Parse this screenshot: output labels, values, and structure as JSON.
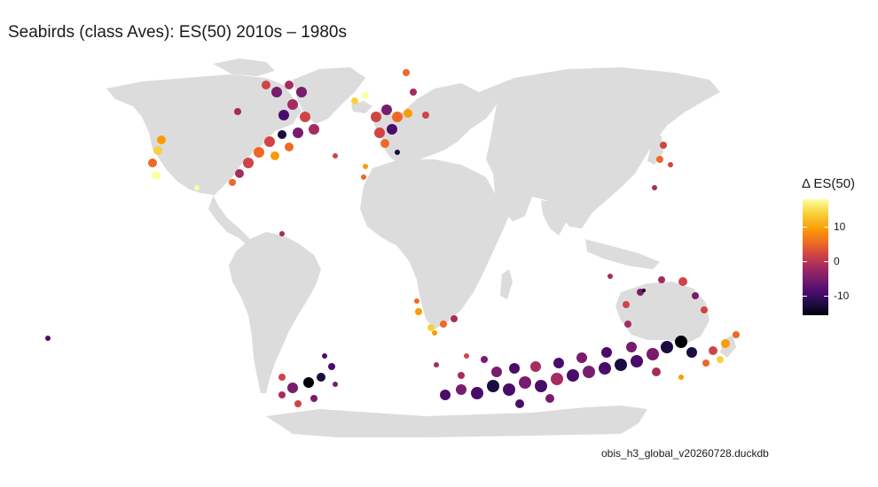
{
  "title": "Seabirds (class Aves): ES(50) 2010s – 1980s",
  "caption": "obis_h3_global_v20260728.duckdb",
  "legend": {
    "title": "Δ ES(50)",
    "ticks": [
      {
        "label": "10",
        "value": 10
      },
      {
        "label": "0",
        "value": 0
      },
      {
        "label": "-10",
        "value": -10
      }
    ],
    "range": [
      -16,
      19
    ],
    "colormap": "inferno"
  },
  "colors": {
    "land": "#dcdcdc",
    "background": "#ffffff"
  }
}
